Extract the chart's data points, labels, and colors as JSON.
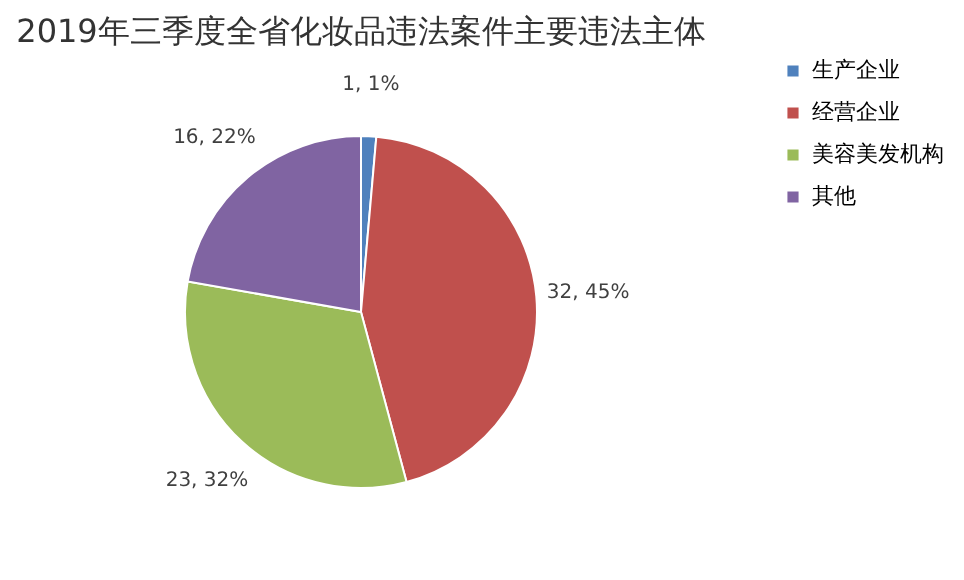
{
  "chart_data": {
    "type": "pie",
    "title": "2019年三季度全省化妆品违法案件主要违法主体",
    "categories": [
      "生产企业",
      "经营企业",
      "美容美发机构",
      "其他"
    ],
    "values": [
      1,
      32,
      23,
      16
    ],
    "colors": [
      "#4f81bd",
      "#c0504d",
      "#9bbb59",
      "#8064a2"
    ],
    "value_labels": [
      "1, 1%",
      "32, 45%",
      "23, 32%",
      "16, 22%"
    ],
    "legend": "right"
  }
}
